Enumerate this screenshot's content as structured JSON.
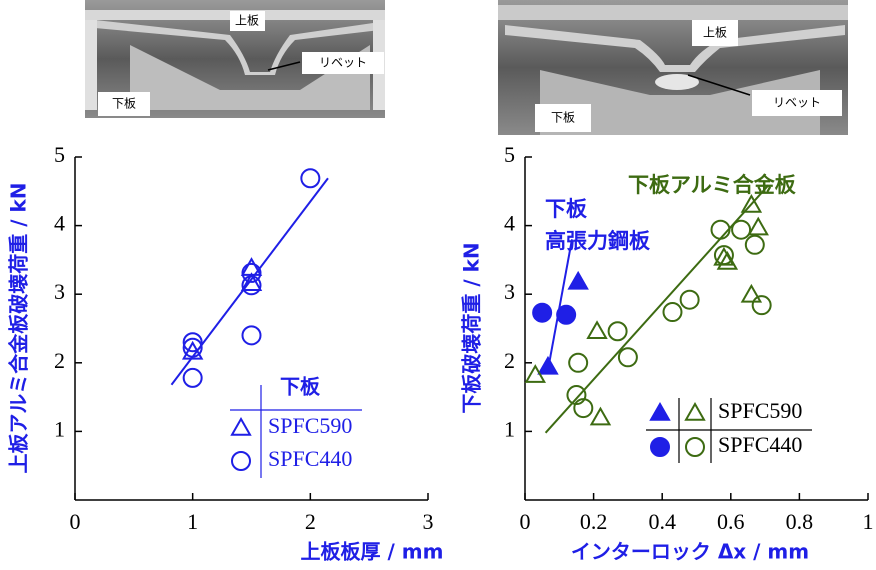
{
  "photos": [
    {
      "top": "上板",
      "rivet": "リベット",
      "bottom": "下板"
    },
    {
      "top": "上板",
      "rivet": "リベット",
      "bottom": "下板"
    }
  ],
  "chart_data": [
    {
      "type": "scatter",
      "xlabel": "上板板厚 / mm",
      "ylabel": "上板アルミ合金板破壊荷重 / kN",
      "xlim": [
        0,
        3
      ],
      "ylim": [
        0,
        5
      ],
      "xticks": [
        0,
        1,
        2,
        3
      ],
      "yticks": [
        1,
        2,
        3,
        4,
        5
      ],
      "legend_title": "下板",
      "series": [
        {
          "name": "SPFC590",
          "color": "#1f1fe6",
          "marker": "triangle",
          "filled": false,
          "x": [
            1,
            1.5,
            1.5
          ],
          "values": [
            2.16,
            3.38,
            3.16
          ]
        },
        {
          "name": "SPFC440",
          "color": "#1f1fe6",
          "marker": "circle",
          "filled": false,
          "x": [
            1,
            1,
            1,
            1.5,
            1.5,
            1.5,
            2
          ],
          "values": [
            2.3,
            2.22,
            1.78,
            3.31,
            3.13,
            2.4,
            4.69
          ]
        }
      ],
      "fits": [
        {
          "color": "#1f1fe6",
          "x": [
            0.82,
            2.15
          ],
          "values": [
            1.68,
            4.69
          ]
        }
      ]
    },
    {
      "type": "scatter",
      "xlabel": "インターロック Δx / mm",
      "ylabel": "下板破壊荷重 / kN",
      "xlim": [
        0,
        1
      ],
      "ylim": [
        0,
        5
      ],
      "xticks": [
        0,
        0.2,
        0.4,
        0.6,
        0.8,
        1
      ],
      "yticks": [
        1,
        2,
        3,
        4,
        5
      ],
      "annotations": [
        {
          "text": "下板",
          "color": "#1f1fe6"
        },
        {
          "text": "高張力鋼板",
          "color": "#1f1fe6"
        },
        {
          "text": "下板アルミ合金板",
          "color": "#3d6b12"
        }
      ],
      "series": [
        {
          "name": "SPFC590",
          "color": "#1f1fe6",
          "marker": "triangle",
          "filled": true,
          "x": [
            0.067,
            0.155
          ],
          "values": [
            1.94,
            3.18
          ]
        },
        {
          "name": "SPFC590",
          "color": "#3d6b12",
          "marker": "triangle",
          "filled": false,
          "x": [
            0.03,
            0.21,
            0.22,
            0.58,
            0.59,
            0.66,
            0.68,
            0.66
          ],
          "values": [
            1.82,
            2.46,
            1.2,
            3.53,
            3.47,
            4.3,
            3.97,
            2.99
          ]
        },
        {
          "name": "SPFC440",
          "color": "#1f1fe6",
          "marker": "circle",
          "filled": true,
          "x": [
            0.05,
            0.12
          ],
          "values": [
            2.73,
            2.7
          ]
        },
        {
          "name": "SPFC440",
          "color": "#3d6b12",
          "marker": "circle",
          "filled": false,
          "x": [
            0.155,
            0.17,
            0.15,
            0.27,
            0.3,
            0.43,
            0.48,
            0.57,
            0.58,
            0.63,
            0.67,
            0.69
          ],
          "values": [
            2.0,
            1.34,
            1.53,
            2.46,
            2.08,
            2.74,
            2.92,
            3.94,
            3.57,
            3.94,
            3.72,
            2.84
          ]
        }
      ],
      "fits": [
        {
          "color": "#1f1fe6",
          "x": [
            0.067,
            0.137
          ],
          "values": [
            1.9,
            3.8
          ]
        },
        {
          "color": "#3d6b12",
          "x": [
            0.06,
            0.71
          ],
          "values": [
            0.98,
            4.59
          ]
        }
      ]
    }
  ]
}
